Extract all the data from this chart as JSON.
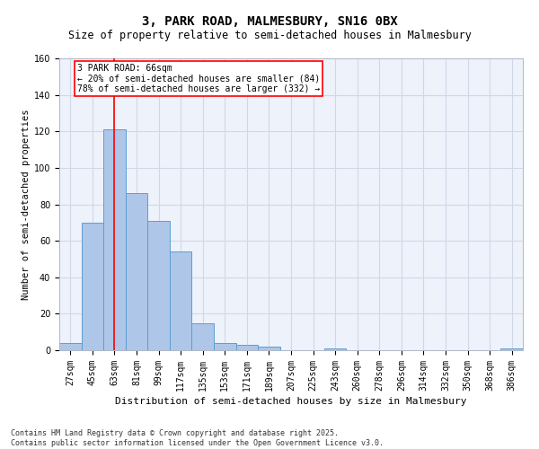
{
  "title": "3, PARK ROAD, MALMESBURY, SN16 0BX",
  "subtitle": "Size of property relative to semi-detached houses in Malmesbury",
  "xlabel": "Distribution of semi-detached houses by size in Malmesbury",
  "ylabel": "Number of semi-detached properties",
  "footer_line1": "Contains HM Land Registry data © Crown copyright and database right 2025.",
  "footer_line2": "Contains public sector information licensed under the Open Government Licence v3.0.",
  "categories": [
    "27sqm",
    "45sqm",
    "63sqm",
    "81sqm",
    "99sqm",
    "117sqm",
    "135sqm",
    "153sqm",
    "171sqm",
    "189sqm",
    "207sqm",
    "225sqm",
    "243sqm",
    "260sqm",
    "278sqm",
    "296sqm",
    "314sqm",
    "332sqm",
    "350sqm",
    "368sqm",
    "386sqm"
  ],
  "values": [
    4,
    70,
    121,
    86,
    71,
    54,
    15,
    4,
    3,
    2,
    0,
    0,
    1,
    0,
    0,
    0,
    0,
    0,
    0,
    0,
    1
  ],
  "bar_color": "#aec6e8",
  "bar_edge_color": "#5a9fd4",
  "grid_color": "#d0d8e8",
  "background_color": "#eef2fa",
  "vline_x": 2,
  "vline_color": "red",
  "annotation_title": "3 PARK ROAD: 66sqm",
  "annotation_line1": "← 20% of semi-detached houses are smaller (84)",
  "annotation_line2": "78% of semi-detached houses are larger (332) →",
  "ylim": [
    0,
    160
  ],
  "yticks": [
    0,
    20,
    40,
    60,
    80,
    100,
    120,
    140,
    160
  ],
  "title_fontsize": 10,
  "subtitle_fontsize": 8.5,
  "xlabel_fontsize": 8,
  "ylabel_fontsize": 7.5,
  "tick_fontsize": 7,
  "annotation_fontsize": 7,
  "footer_fontsize": 6
}
